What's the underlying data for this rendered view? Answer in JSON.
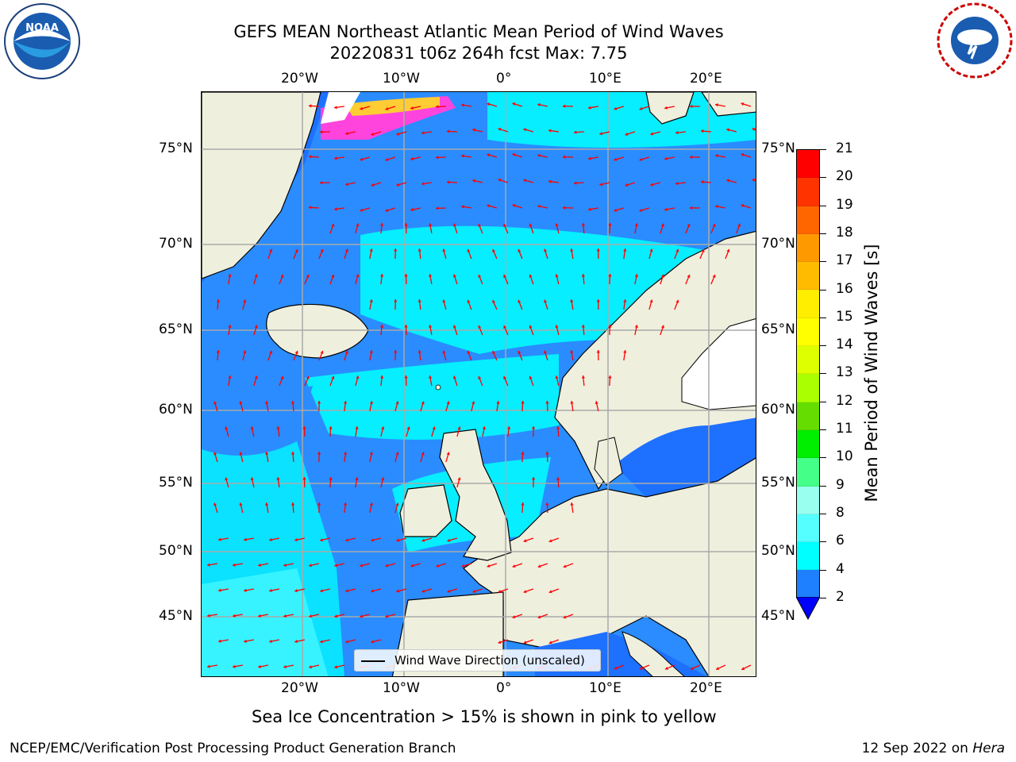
{
  "header": {
    "title_line1": "GEFS MEAN Northeast Atlantic Mean Period of Wind Waves",
    "title_line2": "20220831 t06z 264h fcst   Max: 7.75"
  },
  "map": {
    "lon_labels": [
      "20°W",
      "10°W",
      "0°",
      "10°E",
      "20°E"
    ],
    "lat_labels": [
      "75°N",
      "70°N",
      "65°N",
      "60°N",
      "55°N",
      "50°N",
      "45°N"
    ],
    "legend_label": "Wind Wave Direction (unscaled)",
    "colors": {
      "ocean_blue": "#2a8cff",
      "ocean_dark": "#0000ff",
      "ocean_cyan": "#00ffff",
      "land": "#efefde",
      "arrow": "#ff0000",
      "grid": "#aaaaaa"
    }
  },
  "colorbar": {
    "label": "Mean Period of Wind Waves [s]",
    "ticks": [
      "2",
      "4",
      "6",
      "8",
      "9",
      "10",
      "11",
      "12",
      "13",
      "14",
      "15",
      "16",
      "17",
      "18",
      "19",
      "20",
      "21"
    ],
    "colors": [
      "#ff0000",
      "#ff3300",
      "#ff6600",
      "#ff9900",
      "#ffbb00",
      "#ffee00",
      "#ffff00",
      "#ddff00",
      "#aaff00",
      "#66dd00",
      "#00ee00",
      "#44ff88",
      "#99ffee",
      "#55ffff",
      "#00ffff",
      "#1e7fff"
    ]
  },
  "notes": {
    "ice": "Sea Ice Concentration > 15% is shown in pink to yellow"
  },
  "footer": {
    "left": "NCEP/EMC/Verification Post Processing Product Generation Branch",
    "right_date": "12 Sep 2022 on ",
    "right_machine": "Hera"
  },
  "logos": {
    "left": "noaa-logo",
    "right": "nws-logo"
  }
}
